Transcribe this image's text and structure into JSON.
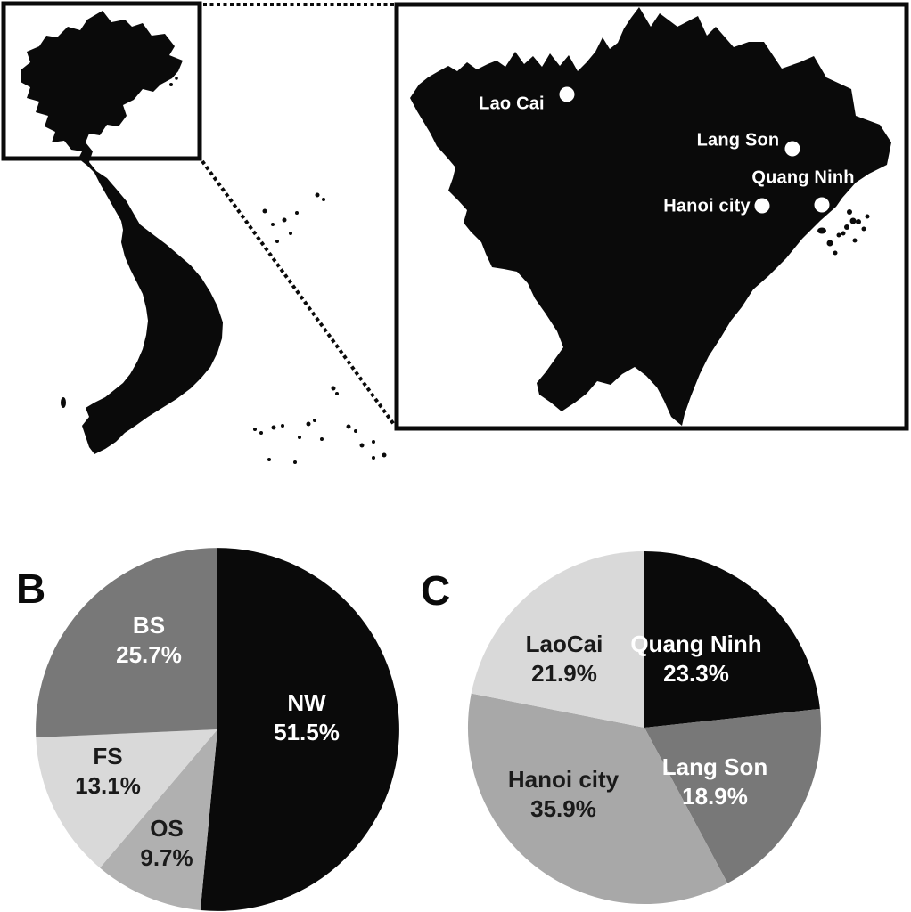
{
  "map": {
    "cities": [
      {
        "name": "Lao Cai"
      },
      {
        "name": "Lang Son"
      },
      {
        "name": "Quang Ninh"
      },
      {
        "name": "Hanoi city"
      }
    ]
  },
  "panels": {
    "b": "B",
    "c": "C"
  },
  "colors": {
    "black": "#0a0a0a",
    "dark_gray": "#787878",
    "medium_gray": "#b0b0b0",
    "hanoi_gray": "#a8a8a8",
    "light_gray": "#d9d9d9",
    "white": "#ffffff"
  },
  "chart_data": [
    {
      "id": "B",
      "type": "pie",
      "panel_label": "B",
      "start_angle_deg": 0,
      "direction": "clockwise",
      "slices": [
        {
          "label": "NW",
          "value": 51.5,
          "pct": "51.5%",
          "color": "#0a0a0a",
          "text_color": "#ffffff"
        },
        {
          "label": "OS",
          "value": 9.7,
          "pct": "9.7%",
          "color": "#b0b0b0",
          "text_color": "#1a1a1a"
        },
        {
          "label": "FS",
          "value": 13.1,
          "pct": "13.1%",
          "color": "#d9d9d9",
          "text_color": "#1a1a1a"
        },
        {
          "label": "BS",
          "value": 25.7,
          "pct": "25.7%",
          "color": "#787878",
          "text_color": "#ffffff"
        }
      ]
    },
    {
      "id": "C",
      "type": "pie",
      "panel_label": "C",
      "start_angle_deg": 0,
      "direction": "clockwise",
      "slices": [
        {
          "label": "Quang Ninh",
          "value": 23.3,
          "pct": "23.3%",
          "color": "#0a0a0a",
          "text_color": "#ffffff"
        },
        {
          "label": "Lang Son",
          "value": 18.9,
          "pct": "18.9%",
          "color": "#787878",
          "text_color": "#ffffff"
        },
        {
          "label": "Hanoi city",
          "value": 35.9,
          "pct": "35.9%",
          "color": "#a8a8a8",
          "text_color": "#1a1a1a"
        },
        {
          "label": "LaoCai",
          "value": 21.9,
          "pct": "21.9%",
          "color": "#d9d9d9",
          "text_color": "#1a1a1a"
        }
      ]
    }
  ]
}
